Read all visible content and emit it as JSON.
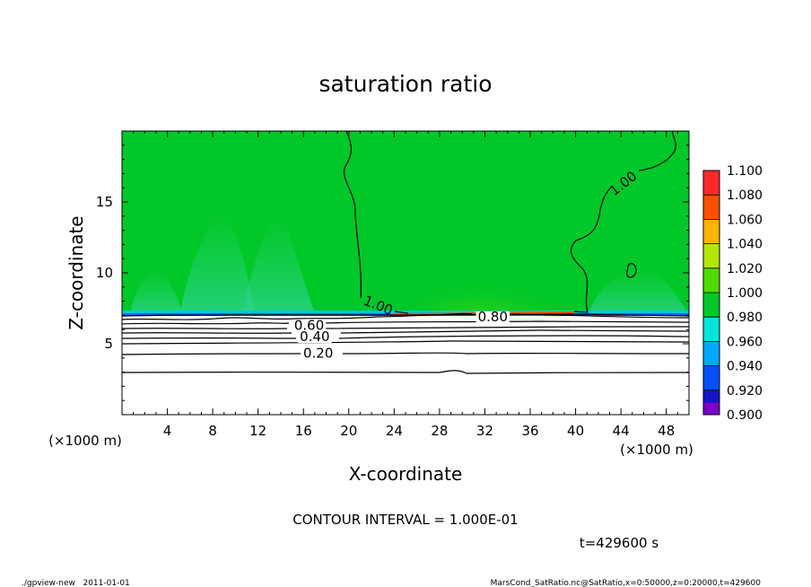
{
  "chart_data": {
    "type": "contour",
    "title": "saturation ratio",
    "xlabel": "X-coordinate",
    "ylabel": "Z-coordinate",
    "x_unit": "(×1000 m)",
    "z_unit": "(×1000 m)",
    "xlim": [
      0,
      50
    ],
    "ylim": [
      0,
      20
    ],
    "x_ticks": [
      4,
      8,
      12,
      16,
      20,
      24,
      28,
      32,
      36,
      40,
      44,
      48
    ],
    "y_ticks": [
      5,
      10,
      15
    ],
    "colorbar": {
      "levels": [
        "0.900",
        "0.920",
        "0.940",
        "0.960",
        "0.980",
        "1.000",
        "1.020",
        "1.040",
        "1.060",
        "1.080",
        "1.100"
      ],
      "colors": [
        "#7b00c8",
        "#1414c8",
        "#0050ff",
        "#00a8ff",
        "#00e6dc",
        "#00c828",
        "#50dc00",
        "#b4e600",
        "#ffb400",
        "#ff5000",
        "#ff2828",
        "#ff9696"
      ]
    },
    "contour_labels": [
      {
        "text": "1.00",
        "x": 22.6,
        "z": 7.7,
        "angle": 22
      },
      {
        "text": "1.00",
        "x": 44.2,
        "z": 16.3,
        "angle": -38
      },
      {
        "text": "0.80",
        "x": 32.7,
        "z": 6.9,
        "angle": 0
      },
      {
        "text": "0.60",
        "x": 16.5,
        "z": 6.3,
        "angle": 0
      },
      {
        "text": "0.40",
        "x": 17.0,
        "z": 5.5,
        "angle": 0
      },
      {
        "text": "0.20",
        "x": 17.3,
        "z": 4.35,
        "angle": 0
      }
    ],
    "contour_interval": "CONTOUR INTERVAL = 1.000E-01",
    "time": "t=429600 s"
  },
  "footer": {
    "left": "./gpview-new   2011-01-01",
    "right": "MarsCond_SatRatio.nc@SatRatio,x=0:50000,z=0:20000,t=429600"
  }
}
